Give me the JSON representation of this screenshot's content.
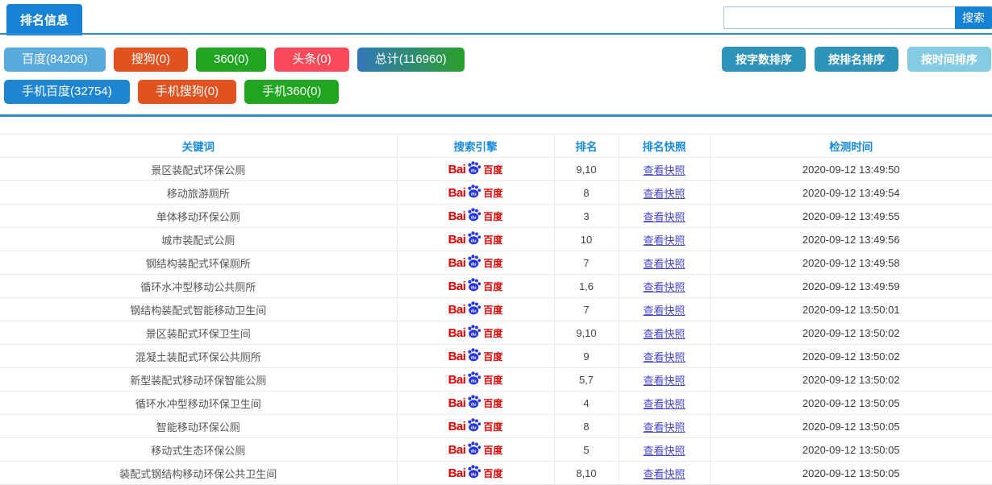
{
  "header": {
    "title_tab": "排名信息",
    "search": {
      "value": "",
      "button_label": "搜索"
    }
  },
  "filters": {
    "row1": [
      {
        "label": "百度(84206)",
        "color": "#58a9dc"
      },
      {
        "label": "搜狗(0)",
        "color": "#e0521f"
      },
      {
        "label": "360(0)",
        "color": "#1fa520"
      },
      {
        "label": "头条(0)",
        "color": "#fb4a59"
      },
      {
        "label": "总计(116960)",
        "color": "#3377bb",
        "color2": "#2aa02a",
        "gradient": true
      }
    ],
    "row2": [
      {
        "label": "手机百度(32754)",
        "color": "#1e86d0"
      },
      {
        "label": "手机搜狗(0)",
        "color": "#e0521f"
      },
      {
        "label": "手机360(0)",
        "color": "#1fa520"
      }
    ]
  },
  "sort_buttons": [
    {
      "label": "按字数排序",
      "color": "#2e93b8"
    },
    {
      "label": "按排名排序",
      "color": "#2e93b8"
    },
    {
      "label": "按时间排序",
      "color": "#85cbe1"
    }
  ],
  "colors": {
    "accent_blue": "#1682d6",
    "divider_blue": "#2a8fd8",
    "table_header_text": "#1a8bd8",
    "snapshot_link": "#4545d0",
    "baidu_red": "#e60000",
    "baidu_paw_blue": "#2635dd"
  },
  "table": {
    "headers": [
      "关键词",
      "搜索引擎",
      "排名",
      "排名快照",
      "检测时间"
    ],
    "engine_logo": {
      "bai": "Bai",
      "du": "du",
      "cn": "百度"
    },
    "snapshot_label": "查看快照",
    "rows": [
      {
        "keyword": "景区装配式环保公厕",
        "rank": "9,10",
        "time": "2020-09-12 13:49:50"
      },
      {
        "keyword": "移动旅游厕所",
        "rank": "8",
        "time": "2020-09-12 13:49:54"
      },
      {
        "keyword": "单体移动环保公厕",
        "rank": "3",
        "time": "2020-09-12 13:49:55"
      },
      {
        "keyword": "城市装配式公厕",
        "rank": "10",
        "time": "2020-09-12 13:49:56"
      },
      {
        "keyword": "钢结构装配式环保厕所",
        "rank": "7",
        "time": "2020-09-12 13:49:58"
      },
      {
        "keyword": "循环水冲型移动公共厕所",
        "rank": "1,6",
        "time": "2020-09-12 13:49:59"
      },
      {
        "keyword": "钢结构装配式智能移动卫生间",
        "rank": "7",
        "time": "2020-09-12 13:50:01"
      },
      {
        "keyword": "景区装配式环保卫生间",
        "rank": "9,10",
        "time": "2020-09-12 13:50:02"
      },
      {
        "keyword": "混凝土装配式环保公共厕所",
        "rank": "9",
        "time": "2020-09-12 13:50:02"
      },
      {
        "keyword": "新型装配式移动环保智能公厕",
        "rank": "5,7",
        "time": "2020-09-12 13:50:02"
      },
      {
        "keyword": "循环水冲型移动环保卫生间",
        "rank": "4",
        "time": "2020-09-12 13:50:05"
      },
      {
        "keyword": "智能移动环保公厕",
        "rank": "8",
        "time": "2020-09-12 13:50:05"
      },
      {
        "keyword": "移动式生态环保公厕",
        "rank": "5",
        "time": "2020-09-12 13:50:05"
      },
      {
        "keyword": "装配式钢结构移动环保公共卫生间",
        "rank": "8,10",
        "time": "2020-09-12 13:50:05"
      }
    ]
  }
}
